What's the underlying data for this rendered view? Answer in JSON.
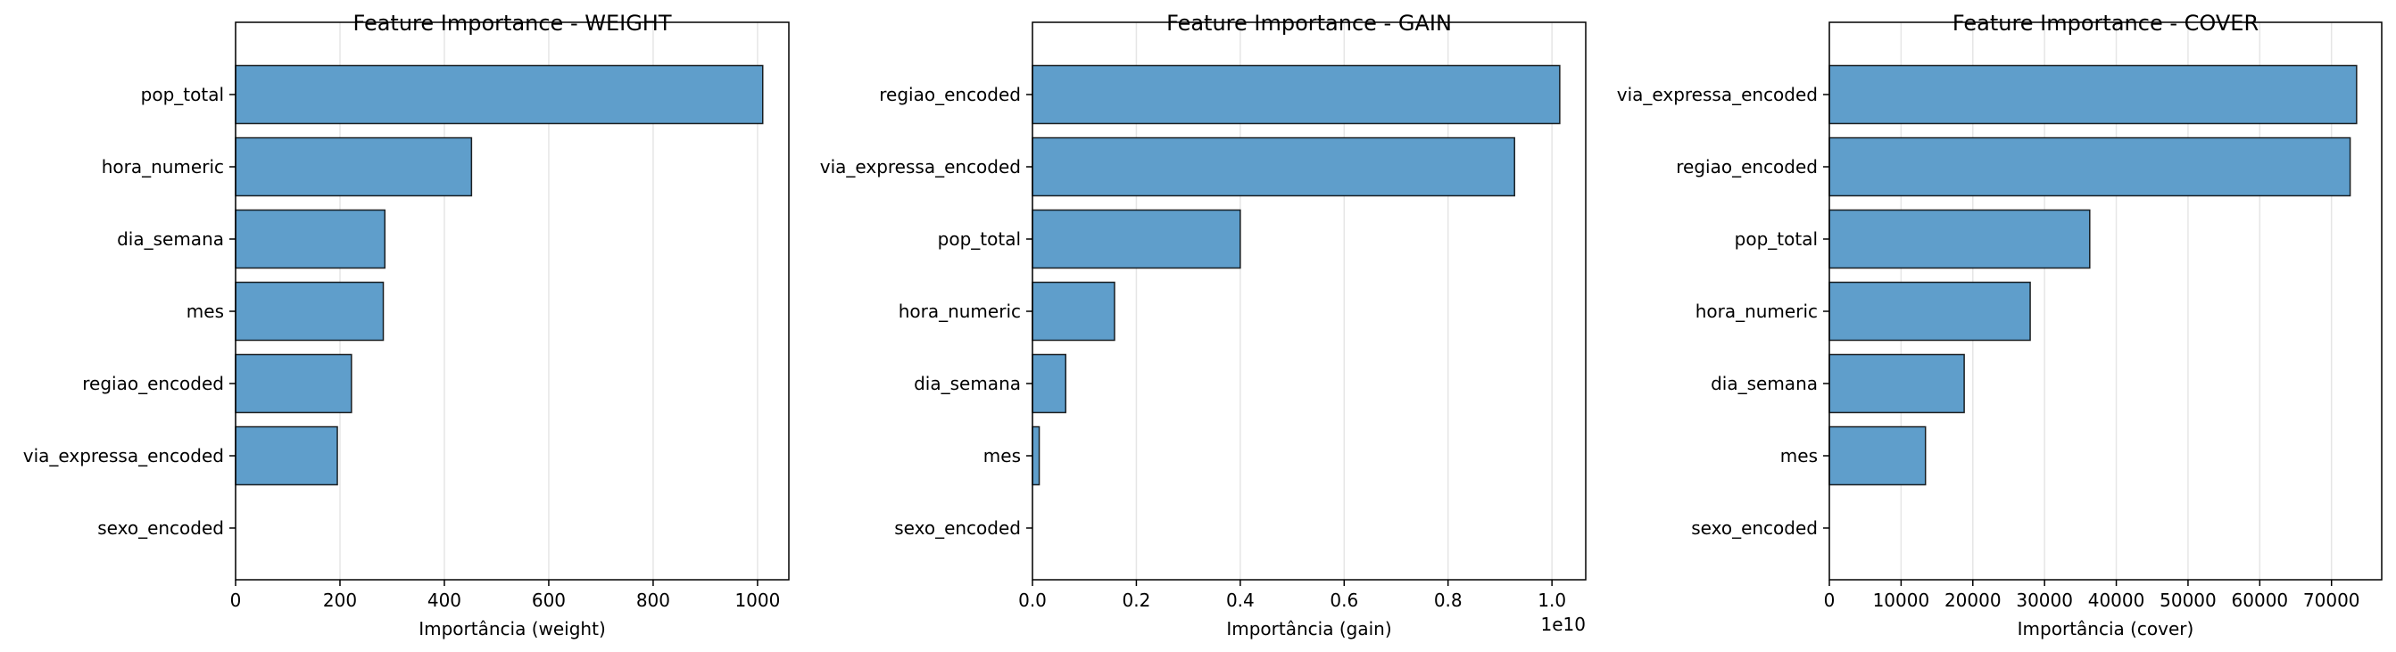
{
  "chart_data": [
    {
      "type": "bar",
      "orientation": "horizontal",
      "title": "Feature Importance - WEIGHT",
      "xlabel": "Importância (weight)",
      "ylabel": "",
      "categories": [
        "pop_total",
        "hora_numeric",
        "dia_semana",
        "mes",
        "regiao_encoded",
        "via_expressa_encoded",
        "sexo_encoded"
      ],
      "values": [
        1010,
        452,
        286,
        283,
        222,
        195,
        0
      ],
      "xlim": [
        0,
        1060
      ],
      "xticks": [
        0,
        200,
        400,
        600,
        800,
        1000
      ],
      "xtick_labels": [
        "0",
        "200",
        "400",
        "600",
        "800",
        "1000"
      ],
      "offset_label": "",
      "grid": "vertical",
      "bar_color": "#5f9ecb",
      "edge_color": "#000000"
    },
    {
      "type": "bar",
      "orientation": "horizontal",
      "title": "Feature Importance - GAIN",
      "xlabel": "Importância (gain)",
      "ylabel": "",
      "categories": [
        "regiao_encoded",
        "via_expressa_encoded",
        "pop_total",
        "hora_numeric",
        "dia_semana",
        "mes",
        "sexo_encoded"
      ],
      "values": [
        10150000000,
        9280000000,
        4000000000,
        1580000000,
        640000000,
        130000000,
        0
      ],
      "xlim": [
        0,
        10650000000
      ],
      "xticks": [
        0,
        2000000000,
        4000000000,
        6000000000,
        8000000000,
        10000000000
      ],
      "xtick_labels": [
        "0.0",
        "0.2",
        "0.4",
        "0.6",
        "0.8",
        "1.0"
      ],
      "offset_label": "1e10",
      "grid": "vertical",
      "bar_color": "#5f9ecb",
      "edge_color": "#000000"
    },
    {
      "type": "bar",
      "orientation": "horizontal",
      "title": "Feature Importance - COVER",
      "xlabel": "Importância (cover)",
      "ylabel": "",
      "categories": [
        "via_expressa_encoded",
        "regiao_encoded",
        "pop_total",
        "hora_numeric",
        "dia_semana",
        "mes",
        "sexo_encoded"
      ],
      "values": [
        73500,
        72600,
        36300,
        28000,
        18800,
        13400,
        0
      ],
      "xlim": [
        0,
        77000
      ],
      "xticks": [
        0,
        10000,
        20000,
        30000,
        40000,
        50000,
        60000,
        70000
      ],
      "xtick_labels": [
        "0",
        "10000",
        "20000",
        "30000",
        "40000",
        "50000",
        "60000",
        "70000"
      ],
      "offset_label": "",
      "grid": "vertical",
      "bar_color": "#5f9ecb",
      "edge_color": "#000000"
    }
  ]
}
